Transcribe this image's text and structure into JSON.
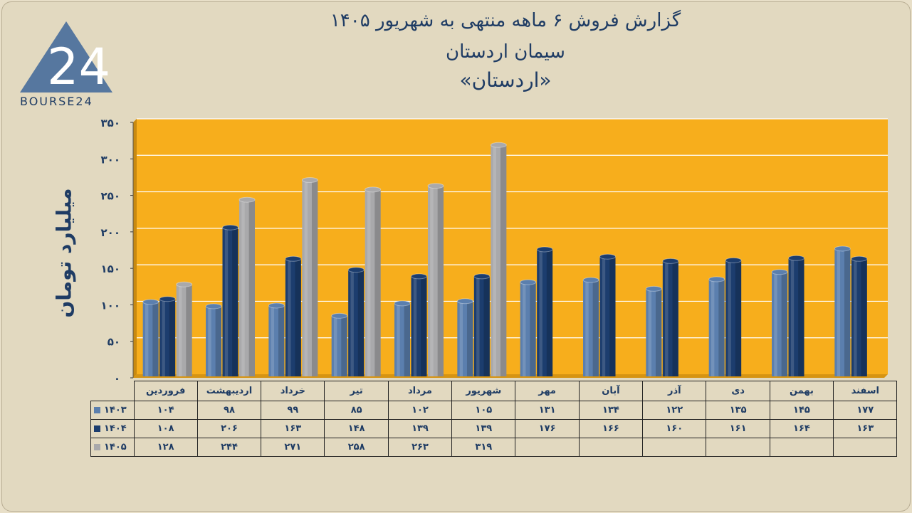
{
  "titles": {
    "line1": "گزارش  فروش ۶  ماهه منتهی به شهریور ۱۴۰۵",
    "line2": "سیمان اردستان",
    "line3": "«اردستان»"
  },
  "logo": {
    "text": "BOURSE24",
    "mark": "24"
  },
  "colors": {
    "background": "#e2d9c0",
    "plot_area": "#f7ae1c",
    "series_1403": "#5b7fae",
    "series_1404": "#1c3d6e",
    "series_1405": "#a9a9ab",
    "text": "#1f3c64"
  },
  "chart_data": {
    "type": "bar",
    "ylabel": "میلیارد تومان",
    "ylim": [
      0,
      350
    ],
    "yticks": [
      0,
      50,
      100,
      150,
      200,
      250,
      300,
      350
    ],
    "ytick_labels": [
      "۰",
      "۵۰",
      "۱۰۰",
      "۱۵۰",
      "۲۰۰",
      "۲۵۰",
      "۳۰۰",
      "۳۵۰"
    ],
    "grid": true,
    "legend": "table-left",
    "categories": [
      "فروردین",
      "اردیبهشت",
      "خرداد",
      "تیر",
      "مرداد",
      "شهریور",
      "مهر",
      "آبان",
      "آذر",
      "دی",
      "بهمن",
      "اسفند"
    ],
    "series": [
      {
        "name": "۱۴۰۳",
        "values": [
          104,
          98,
          99,
          85,
          102,
          105,
          131,
          134,
          122,
          135,
          145,
          177
        ],
        "labels": [
          "۱۰۴",
          "۹۸",
          "۹۹",
          "۸۵",
          "۱۰۲",
          "۱۰۵",
          "۱۳۱",
          "۱۳۴",
          "۱۲۲",
          "۱۳۵",
          "۱۴۵",
          "۱۷۷"
        ]
      },
      {
        "name": "۱۴۰۴",
        "values": [
          108,
          206,
          163,
          148,
          139,
          139,
          176,
          166,
          160,
          161,
          164,
          163
        ],
        "labels": [
          "۱۰۸",
          "۲۰۶",
          "۱۶۳",
          "۱۴۸",
          "۱۳۹",
          "۱۳۹",
          "۱۷۶",
          "۱۶۶",
          "۱۶۰",
          "۱۶۱",
          "۱۶۴",
          "۱۶۳"
        ]
      },
      {
        "name": "۱۴۰۵",
        "values": [
          128,
          244,
          271,
          258,
          263,
          319,
          null,
          null,
          null,
          null,
          null,
          null
        ],
        "labels": [
          "۱۲۸",
          "۲۴۴",
          "۲۷۱",
          "۲۵۸",
          "۲۶۳",
          "۳۱۹",
          "",
          "",
          "",
          "",
          "",
          ""
        ]
      }
    ]
  }
}
